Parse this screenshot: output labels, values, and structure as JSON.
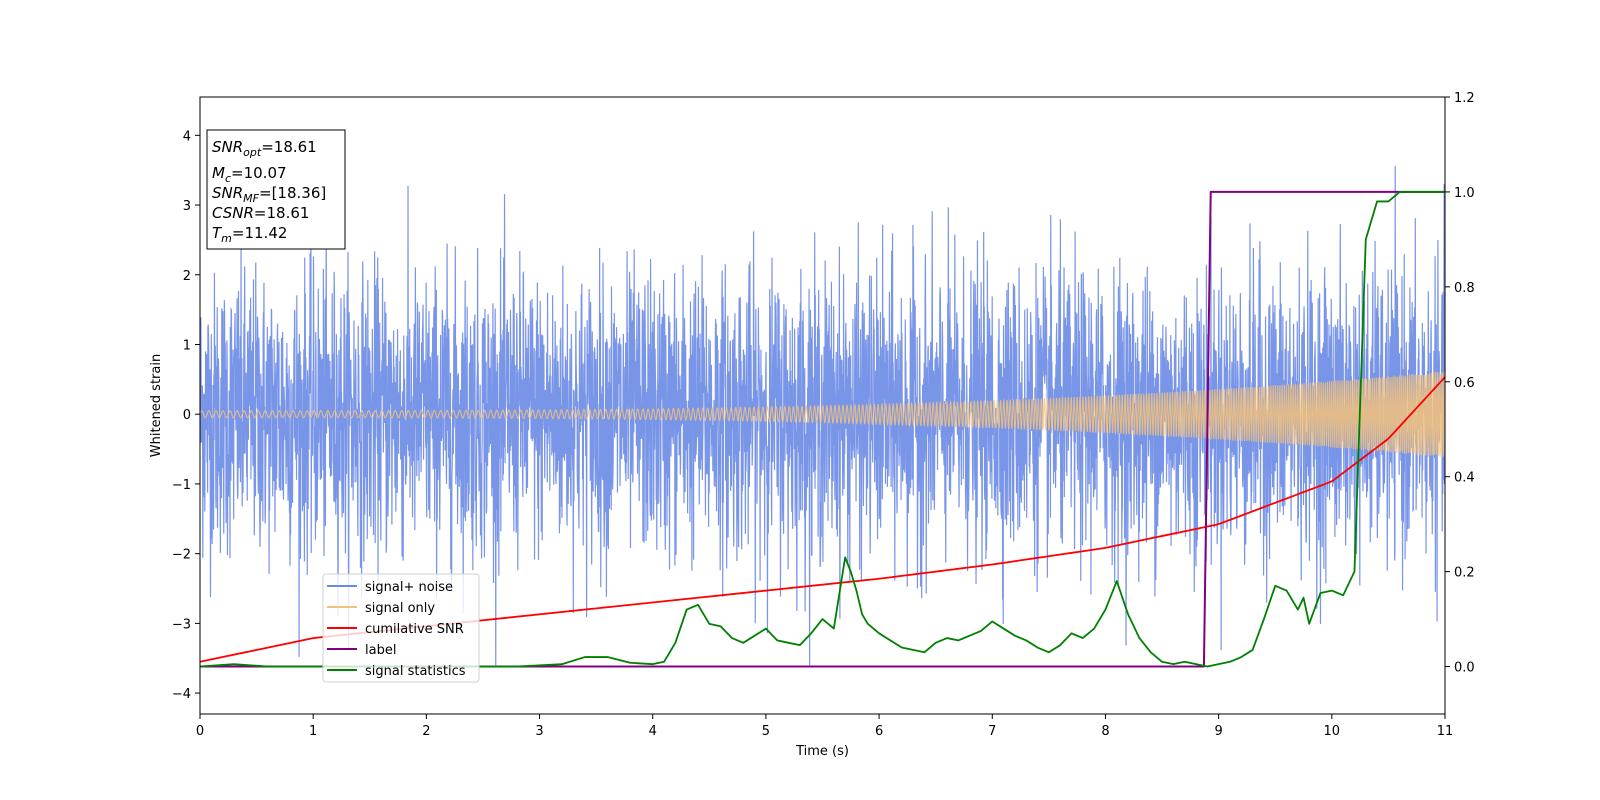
{
  "chart_data": {
    "type": "line",
    "xlabel": "Time (s)",
    "ylabel": "Whitened strain",
    "xlim": [
      0,
      11
    ],
    "ylim_left": [
      -4.3,
      4.55
    ],
    "ylim_right": [
      -0.1,
      1.2
    ],
    "x_ticks": [
      "0",
      "1",
      "2",
      "3",
      "4",
      "5",
      "6",
      "7",
      "8",
      "9",
      "10",
      "11"
    ],
    "y_ticks_left": [
      {
        "value": -4,
        "label": "−4"
      },
      {
        "value": -3,
        "label": "−3"
      },
      {
        "value": -2,
        "label": "−2"
      },
      {
        "value": -1,
        "label": "−1"
      },
      {
        "value": 0,
        "label": "0"
      },
      {
        "value": 1,
        "label": "1"
      },
      {
        "value": 2,
        "label": "2"
      },
      {
        "value": 3,
        "label": "3"
      },
      {
        "value": 4,
        "label": "4"
      }
    ],
    "y_ticks_right": [
      {
        "value": 0.0,
        "label": "0.0"
      },
      {
        "value": 0.2,
        "label": "0.2"
      },
      {
        "value": 0.4,
        "label": "0.4"
      },
      {
        "value": 0.6,
        "label": "0.6"
      },
      {
        "value": 0.8,
        "label": "0.8"
      },
      {
        "value": 1.0,
        "label": "1.0"
      },
      {
        "value": 1.2,
        "label": "1.2"
      }
    ],
    "grid": false,
    "legend_position": "lower-left",
    "colors": {
      "signal_noise": "#6a89e6",
      "signal_only": "#f3c27a",
      "cumulative_snr": "#ff0000",
      "label": "#800080",
      "signal_statistics": "#008000"
    },
    "series": [
      {
        "name": "signal+ noise",
        "axis": "left",
        "kind": "noise",
        "sigma": 1.0,
        "peak_max": 3.6,
        "peak_min": -3.6
      },
      {
        "name": "signal only",
        "axis": "left",
        "kind": "chirp",
        "amplitude_start": 0.05,
        "amplitude_end": 0.62
      },
      {
        "name": "cumilative SNR",
        "axis": "right",
        "x": [
          0,
          1,
          2,
          3,
          4,
          5,
          6,
          7,
          8,
          9,
          10,
          10.5,
          11
        ],
        "y": [
          0.01,
          0.06,
          0.085,
          0.11,
          0.135,
          0.16,
          0.185,
          0.215,
          0.25,
          0.3,
          0.39,
          0.48,
          0.61
        ]
      },
      {
        "name": "label",
        "axis": "right",
        "x": [
          0,
          8.87,
          8.93,
          11
        ],
        "y": [
          0,
          0,
          1,
          1
        ]
      },
      {
        "name": "signal statistics",
        "axis": "right",
        "x": [
          0,
          0.3,
          0.6,
          1,
          2,
          2.8,
          3.2,
          3.4,
          3.6,
          3.8,
          4.0,
          4.1,
          4.2,
          4.3,
          4.4,
          4.5,
          4.6,
          4.7,
          4.8,
          4.9,
          5.0,
          5.1,
          5.2,
          5.3,
          5.4,
          5.5,
          5.6,
          5.7,
          5.75,
          5.8,
          5.85,
          5.9,
          6.0,
          6.1,
          6.2,
          6.3,
          6.4,
          6.5,
          6.6,
          6.7,
          6.8,
          6.9,
          7.0,
          7.1,
          7.2,
          7.3,
          7.4,
          7.5,
          7.6,
          7.7,
          7.8,
          7.9,
          8.0,
          8.05,
          8.1,
          8.2,
          8.3,
          8.4,
          8.5,
          8.6,
          8.7,
          8.8,
          8.9,
          9.0,
          9.1,
          9.2,
          9.3,
          9.4,
          9.5,
          9.6,
          9.7,
          9.75,
          9.8,
          9.9,
          10.0,
          10.1,
          10.2,
          10.25,
          10.3,
          10.4,
          10.5,
          10.6,
          10.7,
          11
        ],
        "y": [
          0.0,
          0.005,
          0.0,
          0.0,
          0.0,
          0.0,
          0.005,
          0.02,
          0.02,
          0.008,
          0.005,
          0.01,
          0.05,
          0.12,
          0.13,
          0.09,
          0.085,
          0.06,
          0.05,
          0.065,
          0.08,
          0.055,
          0.05,
          0.045,
          0.07,
          0.1,
          0.08,
          0.23,
          0.2,
          0.16,
          0.11,
          0.09,
          0.07,
          0.055,
          0.04,
          0.035,
          0.03,
          0.05,
          0.06,
          0.055,
          0.065,
          0.075,
          0.095,
          0.08,
          0.065,
          0.055,
          0.04,
          0.03,
          0.045,
          0.07,
          0.06,
          0.08,
          0.12,
          0.15,
          0.18,
          0.11,
          0.06,
          0.03,
          0.01,
          0.005,
          0.01,
          0.005,
          0.0,
          0.005,
          0.01,
          0.02,
          0.035,
          0.1,
          0.17,
          0.16,
          0.12,
          0.145,
          0.09,
          0.155,
          0.16,
          0.15,
          0.2,
          0.55,
          0.9,
          0.98,
          0.98,
          1.0,
          1.0,
          1.0
        ]
      }
    ],
    "info_box": [
      {
        "sym": "SNR",
        "sub": "opt",
        "val": "=18.61"
      },
      {
        "sym": "M",
        "sub": "c",
        "val": "=10.07"
      },
      {
        "sym": "SNR",
        "sub": "MF",
        "val": "=[18.36]"
      },
      {
        "sym": "CSNR",
        "sub": "",
        "val": "=18.61"
      },
      {
        "sym": "T",
        "sub": "m",
        "val": "=11.42"
      }
    ]
  }
}
